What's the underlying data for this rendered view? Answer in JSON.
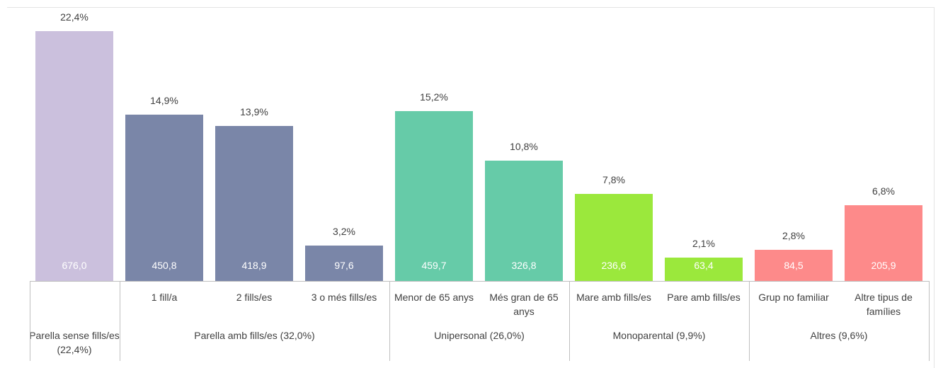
{
  "chart_data": {
    "type": "bar",
    "categories": [
      null,
      "1 fill/a",
      "2 fills/es",
      "3 o més fills/es",
      "Menor de 65 anys",
      "Més gran de 65 anys",
      "Mare amb fills/es",
      "Pare amb fills/es",
      "Grup no familiar",
      "Altre tipus de famílies"
    ],
    "values": [
      22.4,
      14.9,
      13.9,
      3.2,
      15.2,
      10.8,
      7.8,
      2.1,
      2.8,
      6.8
    ],
    "value_labels": [
      "22,4%",
      "14,9%",
      "13,9%",
      "3,2%",
      "15,2%",
      "10,8%",
      "7,8%",
      "2,1%",
      "2,8%",
      "6,8%"
    ],
    "absolute_values": [
      676.0,
      450.8,
      418.9,
      97.6,
      459.7,
      326.8,
      236.6,
      63.4,
      84.5,
      205.9
    ],
    "absolute_value_labels": [
      "676,0",
      "450,8",
      "418,9",
      "97,6",
      "459,7",
      "326,8",
      "236,6",
      "63,4",
      "84,5",
      "205,9"
    ],
    "colors": [
      "#cbc0dd",
      "#7a86a8",
      "#7a86a8",
      "#7a86a8",
      "#66cba8",
      "#66cba8",
      "#9be83c",
      "#9be83c",
      "#fd8a8a",
      "#fd8a8a"
    ],
    "groups": [
      {
        "name": "Parella sense fills/es (22,4%)",
        "members": 1
      },
      {
        "name": "Parella amb fills/es (32,0%)",
        "members": 3
      },
      {
        "name": "Unipersonal (26,0%)",
        "members": 2
      },
      {
        "name": "Monoparental (9,9%)",
        "members": 2
      },
      {
        "name": "Altres (9,6%)",
        "members": 2
      }
    ],
    "ylim": [
      0,
      25
    ]
  }
}
